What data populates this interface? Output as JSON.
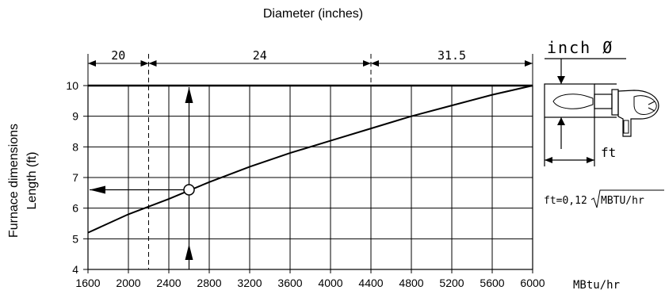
{
  "chart_data": {
    "type": "line",
    "title": "Diameter (inches)",
    "ylabel_line1": "Furnace dimensions",
    "ylabel_line2": "Length (ft)",
    "x_unit": "MBtu/hr",
    "xlim": [
      1600,
      6000
    ],
    "ylim": [
      4,
      10
    ],
    "x_ticks": [
      1600,
      2000,
      2400,
      2800,
      3200,
      3600,
      4000,
      4400,
      4800,
      5200,
      5600,
      6000
    ],
    "y_ticks": [
      4,
      5,
      6,
      7,
      8,
      9,
      10
    ],
    "grid": true,
    "series": [
      {
        "x": [
          1600,
          2000,
          2400,
          2800,
          3200,
          3600,
          4000,
          4400,
          4800,
          5200,
          5600,
          6000
        ],
        "y": [
          5.2,
          5.8,
          6.3,
          6.85,
          7.35,
          7.8,
          8.2,
          8.6,
          9.0,
          9.35,
          9.7,
          10.0
        ]
      }
    ],
    "diameter_ranges": [
      {
        "label": "20",
        "from": 1600,
        "to": 2200
      },
      {
        "label": "24",
        "from": 2200,
        "to": 4400
      },
      {
        "label": "31.5",
        "from": 4400,
        "to": 6000
      }
    ],
    "example_point": {
      "x": 2600,
      "y": 6.6
    }
  },
  "inset": {
    "title": "inch Ø",
    "ft_label": "ft",
    "formula_prefix": "ft=0,12",
    "formula_radicand": "MBTU/hr"
  }
}
